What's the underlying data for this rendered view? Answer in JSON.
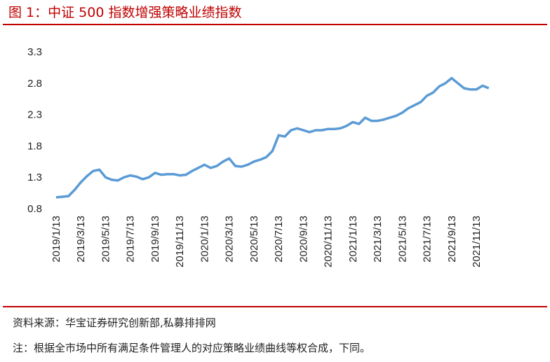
{
  "chart_data": {
    "type": "line",
    "title": "图 1：中证 500 指数增强策略业绩指数",
    "source": "资料来源：华宝证券研究创新部,私募排排网",
    "note": "注：根据全市场中所有满足条件管理人的对应策略业绩曲线等权合成，下同。",
    "categories": [
      "2019/1/13",
      null,
      null,
      null,
      "2019/3/13",
      null,
      null,
      null,
      "2019/5/13",
      null,
      null,
      null,
      "2019/7/13",
      null,
      null,
      null,
      "2019/9/13",
      null,
      null,
      null,
      "2019/11/13",
      null,
      null,
      null,
      "2020/1/13",
      null,
      null,
      null,
      "2020/3/13",
      null,
      null,
      null,
      "2020/5/13",
      null,
      null,
      null,
      "2020/7/13",
      null,
      null,
      null,
      "2020/9/13",
      null,
      null,
      null,
      "2020/11/13",
      null,
      null,
      null,
      "2021/1/13",
      null,
      null,
      null,
      "2021/3/13",
      null,
      null,
      null,
      "2021/5/13",
      null,
      null,
      null,
      "2021/7/13",
      null,
      null,
      null,
      "2021/9/13",
      null,
      null,
      null,
      "2021/11/13",
      null,
      null
    ],
    "series": [
      {
        "color": "#5b9bd5",
        "values": [
          0.98,
          0.99,
          1.0,
          1.1,
          1.22,
          1.32,
          1.4,
          1.42,
          1.3,
          1.26,
          1.25,
          1.3,
          1.33,
          1.31,
          1.27,
          1.3,
          1.37,
          1.34,
          1.35,
          1.35,
          1.33,
          1.34,
          1.4,
          1.45,
          1.5,
          1.45,
          1.48,
          1.55,
          1.6,
          1.48,
          1.47,
          1.5,
          1.55,
          1.58,
          1.62,
          1.72,
          1.97,
          1.95,
          2.05,
          2.08,
          2.05,
          2.02,
          2.05,
          2.05,
          2.07,
          2.07,
          2.08,
          2.12,
          2.18,
          2.15,
          2.25,
          2.2,
          2.2,
          2.22,
          2.25,
          2.28,
          2.33,
          2.4,
          2.45,
          2.5,
          2.6,
          2.65,
          2.75,
          2.8,
          2.88,
          2.8,
          2.72,
          2.7,
          2.7,
          2.76,
          2.72
        ]
      }
    ],
    "ylim": [
      0.8,
      3.3
    ],
    "yticks": [
      0.8,
      1.3,
      1.8,
      2.3,
      2.8,
      3.3
    ],
    "grid": false
  }
}
